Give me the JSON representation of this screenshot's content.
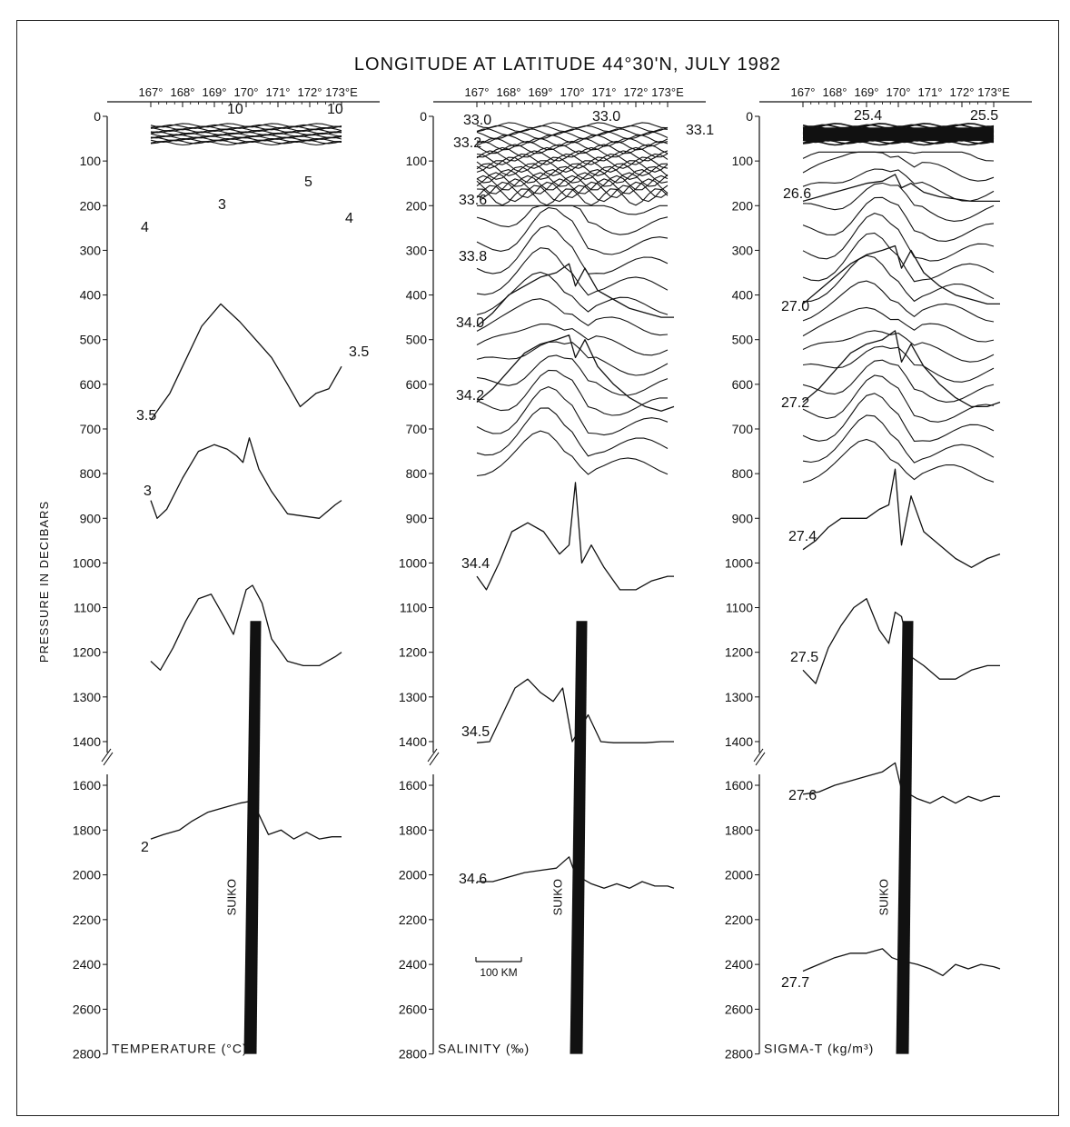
{
  "figure": {
    "title": "LONGITUDE AT LATITUDE 44°30'N, JULY 1982",
    "ylabel": "PRESSURE IN DECIBARS",
    "seamount_label": "SUIKO",
    "scale_bar_label": "100 KM"
  },
  "chart_data": [
    {
      "type": "line",
      "title": "TEMPERATURE (°C)",
      "xlabel": "LONGITUDE",
      "ylabel": "PRESSURE IN DECIBARS",
      "x_ticks": [
        "167°",
        "168°",
        "169°",
        "170°",
        "171°",
        "172°",
        "173°E"
      ],
      "x_range": [
        166.3,
        173.6
      ],
      "y_ticks": [
        0,
        100,
        200,
        300,
        400,
        500,
        600,
        700,
        800,
        900,
        1000,
        1100,
        1200,
        1300,
        1400,
        1600,
        1800,
        2000,
        2200,
        2400,
        2600,
        2800
      ],
      "y_range": [
        0,
        2800
      ],
      "contour_labels": [
        "10",
        "10",
        "5",
        "3",
        "4",
        "4",
        "3.5",
        "3.5",
        "3",
        "2"
      ],
      "series": [
        {
          "name": "3.5",
          "x": [
            167.0,
            167.3,
            167.6,
            168.0,
            168.6,
            169.2,
            169.8,
            170.3,
            170.8,
            171.3,
            171.7,
            172.2,
            172.6,
            173.0
          ],
          "y": [
            680,
            650,
            620,
            560,
            470,
            420,
            460,
            500,
            540,
            600,
            650,
            620,
            610,
            560
          ]
        },
        {
          "name": "3",
          "x": [
            167.0,
            167.2,
            167.5,
            168.0,
            168.5,
            169.0,
            169.4,
            169.7,
            169.9,
            170.1,
            170.4,
            170.8,
            171.3,
            171.8,
            172.3,
            172.8,
            173.0
          ],
          "y": [
            860,
            900,
            880,
            810,
            750,
            735,
            745,
            760,
            775,
            720,
            790,
            840,
            890,
            895,
            900,
            870,
            860
          ]
        },
        {
          "name": "",
          "x": [
            167.0,
            167.3,
            167.7,
            168.1,
            168.5,
            168.9,
            169.3,
            169.6,
            169.8,
            170.0,
            170.2,
            170.5,
            170.8,
            171.3,
            171.8,
            172.3,
            172.8,
            173.0
          ],
          "y": [
            1220,
            1240,
            1190,
            1130,
            1080,
            1070,
            1120,
            1160,
            1110,
            1060,
            1050,
            1090,
            1170,
            1220,
            1230,
            1230,
            1210,
            1200
          ]
        },
        {
          "name": "2",
          "x": [
            167.0,
            167.4,
            167.9,
            168.3,
            168.8,
            169.3,
            169.8,
            170.2,
            170.7,
            171.1,
            171.5,
            171.9,
            172.3,
            172.7,
            173.0
          ],
          "y": [
            1840,
            1820,
            1800,
            1760,
            1720,
            1700,
            1680,
            1670,
            1820,
            1800,
            1840,
            1810,
            1840,
            1830,
            1830
          ]
        }
      ]
    },
    {
      "type": "line",
      "title": "SALINITY (‰)",
      "xlabel": "LONGITUDE",
      "ylabel": "PRESSURE IN DECIBARS",
      "x_ticks": [
        "167°",
        "168°",
        "169°",
        "170°",
        "171°",
        "172°",
        "173°E"
      ],
      "x_range": [
        166.3,
        173.6
      ],
      "y_ticks": [
        0,
        100,
        200,
        300,
        400,
        500,
        600,
        700,
        800,
        900,
        1000,
        1100,
        1200,
        1300,
        1400,
        1600,
        1800,
        2000,
        2200,
        2400,
        2600,
        2800
      ],
      "y_range": [
        0,
        2800
      ],
      "contour_labels": [
        "33.0",
        "33.0",
        "33.1",
        "33.2",
        "33.6",
        "33.8",
        "34.0",
        "34.2",
        "34.4",
        "34.5",
        "34.6"
      ],
      "series": [
        {
          "name": "34.0",
          "x": [
            167.0,
            167.5,
            168.0,
            168.5,
            169.0,
            169.5,
            169.9,
            170.1,
            170.4,
            170.8,
            171.3,
            171.8,
            172.3,
            172.8,
            173.2
          ],
          "y": [
            470,
            440,
            400,
            380,
            360,
            350,
            330,
            380,
            340,
            390,
            410,
            430,
            440,
            450,
            450
          ]
        },
        {
          "name": "34.2",
          "x": [
            167.0,
            167.5,
            168.0,
            168.5,
            169.0,
            169.5,
            169.9,
            170.1,
            170.4,
            170.8,
            171.3,
            171.8,
            172.3,
            172.8,
            173.2
          ],
          "y": [
            640,
            610,
            570,
            530,
            510,
            500,
            490,
            540,
            500,
            560,
            600,
            630,
            650,
            660,
            650
          ]
        },
        {
          "name": "34.4",
          "x": [
            167.0,
            167.3,
            167.7,
            168.1,
            168.6,
            169.1,
            169.6,
            169.9,
            170.1,
            170.3,
            170.6,
            171.0,
            171.5,
            172.0,
            172.5,
            173.0,
            173.2
          ],
          "y": [
            1030,
            1060,
            1000,
            930,
            910,
            930,
            980,
            960,
            820,
            1000,
            960,
            1010,
            1060,
            1060,
            1040,
            1030,
            1030
          ]
        },
        {
          "name": "34.5",
          "x": [
            167.0,
            167.4,
            167.8,
            168.2,
            168.6,
            169.0,
            169.4,
            169.7,
            170.0,
            170.5,
            170.9,
            171.3,
            171.8,
            172.3,
            172.8,
            173.2
          ],
          "y": [
            1410,
            1400,
            1340,
            1280,
            1260,
            1290,
            1310,
            1280,
            1400,
            1340,
            1400,
            1410,
            1410,
            1410,
            1400,
            1400
          ]
        },
        {
          "name": "34.6",
          "x": [
            167.0,
            167.5,
            168.0,
            168.5,
            169.0,
            169.5,
            169.9,
            170.1,
            170.6,
            171.0,
            171.4,
            171.8,
            172.2,
            172.6,
            173.0,
            173.2
          ],
          "y": [
            2030,
            2030,
            2010,
            1990,
            1980,
            1970,
            1920,
            2000,
            2040,
            2060,
            2040,
            2060,
            2030,
            2050,
            2050,
            2060
          ]
        }
      ]
    },
    {
      "type": "line",
      "title": "SIGMA-T (kg/m³)",
      "xlabel": "LONGITUDE",
      "ylabel": "PRESSURE IN DECIBARS",
      "x_ticks": [
        "167°",
        "168°",
        "169°",
        "170°",
        "171°",
        "172°",
        "173°E"
      ],
      "x_range": [
        166.3,
        173.6
      ],
      "y_ticks": [
        0,
        100,
        200,
        300,
        400,
        500,
        600,
        700,
        800,
        900,
        1000,
        1100,
        1200,
        1300,
        1400,
        1600,
        1800,
        2000,
        2200,
        2400,
        2600,
        2800
      ],
      "y_range": [
        0,
        2800
      ],
      "contour_labels": [
        "25.4",
        "25.5",
        "26.6",
        "27.0",
        "27.2",
        "27.4",
        "27.5",
        "27.6",
        "27.7"
      ],
      "series": [
        {
          "name": "26.6",
          "x": [
            167.0,
            167.5,
            168.0,
            168.5,
            169.0,
            169.5,
            169.9,
            170.1,
            170.4,
            170.8,
            171.3,
            171.8,
            172.3,
            172.8,
            173.2
          ],
          "y": [
            190,
            180,
            170,
            160,
            150,
            145,
            130,
            160,
            150,
            170,
            180,
            185,
            190,
            190,
            190
          ]
        },
        {
          "name": "27.0",
          "x": [
            167.0,
            167.5,
            168.0,
            168.5,
            169.0,
            169.5,
            169.9,
            170.1,
            170.4,
            170.8,
            171.3,
            171.8,
            172.3,
            172.8,
            173.2
          ],
          "y": [
            420,
            390,
            360,
            330,
            310,
            300,
            290,
            340,
            300,
            350,
            380,
            400,
            410,
            420,
            420
          ]
        },
        {
          "name": "27.2",
          "x": [
            167.0,
            167.5,
            168.0,
            168.5,
            169.0,
            169.5,
            169.9,
            170.1,
            170.4,
            170.8,
            171.3,
            171.8,
            172.3,
            172.8,
            173.2
          ],
          "y": [
            640,
            610,
            570,
            530,
            510,
            500,
            480,
            550,
            510,
            560,
            600,
            630,
            650,
            650,
            640
          ]
        },
        {
          "name": "27.4",
          "x": [
            167.0,
            167.4,
            167.8,
            168.2,
            168.6,
            169.0,
            169.4,
            169.7,
            169.9,
            170.1,
            170.4,
            170.8,
            171.3,
            171.8,
            172.3,
            172.8,
            173.2
          ],
          "y": [
            970,
            950,
            920,
            900,
            900,
            900,
            880,
            870,
            790,
            960,
            850,
            930,
            960,
            990,
            1010,
            990,
            980
          ]
        },
        {
          "name": "27.5",
          "x": [
            167.0,
            167.4,
            167.8,
            168.2,
            168.6,
            169.0,
            169.4,
            169.7,
            169.9,
            170.1,
            170.4,
            170.8,
            171.3,
            171.8,
            172.3,
            172.8,
            173.2
          ],
          "y": [
            1240,
            1270,
            1190,
            1140,
            1100,
            1080,
            1150,
            1180,
            1110,
            1120,
            1210,
            1230,
            1260,
            1260,
            1240,
            1230,
            1230
          ]
        },
        {
          "name": "27.6",
          "x": [
            167.0,
            167.5,
            168.0,
            168.5,
            169.0,
            169.5,
            169.9,
            170.1,
            170.6,
            171.0,
            171.4,
            171.8,
            172.2,
            172.6,
            173.0,
            173.2
          ],
          "y": [
            1640,
            1630,
            1600,
            1580,
            1560,
            1540,
            1500,
            1620,
            1660,
            1680,
            1650,
            1680,
            1650,
            1670,
            1650,
            1650
          ]
        },
        {
          "name": "27.7",
          "x": [
            167.0,
            167.5,
            168.0,
            168.5,
            169.0,
            169.5,
            169.8,
            170.0,
            170.6,
            171.0,
            171.4,
            171.8,
            172.2,
            172.6,
            173.0,
            173.2
          ],
          "y": [
            2430,
            2400,
            2370,
            2350,
            2350,
            2330,
            2370,
            2380,
            2400,
            2420,
            2450,
            2400,
            2420,
            2400,
            2410,
            2420
          ]
        }
      ]
    }
  ]
}
